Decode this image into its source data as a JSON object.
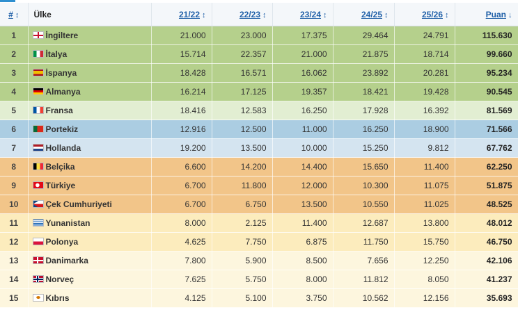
{
  "header": {
    "rank": "#",
    "country": "Ülke",
    "seasons": [
      "21/22",
      "22/23",
      "23/24",
      "24/25",
      "25/26"
    ],
    "points": "Puan",
    "sort_icon": "↕",
    "sorted_icon": "↓"
  },
  "rows": [
    {
      "rank": "1",
      "country": "İngiltere",
      "flag": "england-flag-icon",
      "scores": [
        "21.000",
        "23.000",
        "17.375",
        "29.464",
        "24.791"
      ],
      "points": "115.630"
    },
    {
      "rank": "2",
      "country": "İtalya",
      "flag": "italy-flag-icon",
      "scores": [
        "15.714",
        "22.357",
        "21.000",
        "21.875",
        "18.714"
      ],
      "points": "99.660"
    },
    {
      "rank": "3",
      "country": "İspanya",
      "flag": "spain-flag-icon",
      "scores": [
        "18.428",
        "16.571",
        "16.062",
        "23.892",
        "20.281"
      ],
      "points": "95.234"
    },
    {
      "rank": "4",
      "country": "Almanya",
      "flag": "germany-flag-icon",
      "scores": [
        "16.214",
        "17.125",
        "19.357",
        "18.421",
        "19.428"
      ],
      "points": "90.545"
    },
    {
      "rank": "5",
      "country": "Fransa",
      "flag": "france-flag-icon",
      "scores": [
        "18.416",
        "12.583",
        "16.250",
        "17.928",
        "16.392"
      ],
      "points": "81.569"
    },
    {
      "rank": "6",
      "country": "Portekiz",
      "flag": "portugal-flag-icon",
      "scores": [
        "12.916",
        "12.500",
        "11.000",
        "16.250",
        "18.900"
      ],
      "points": "71.566"
    },
    {
      "rank": "7",
      "country": "Hollanda",
      "flag": "netherlands-flag-icon",
      "scores": [
        "19.200",
        "13.500",
        "10.000",
        "15.250",
        "9.812"
      ],
      "points": "67.762"
    },
    {
      "rank": "8",
      "country": "Belçika",
      "flag": "belgium-flag-icon",
      "scores": [
        "6.600",
        "14.200",
        "14.400",
        "15.650",
        "11.400"
      ],
      "points": "62.250"
    },
    {
      "rank": "9",
      "country": "Türkiye",
      "flag": "turkey-flag-icon",
      "scores": [
        "6.700",
        "11.800",
        "12.000",
        "10.300",
        "11.075"
      ],
      "points": "51.875"
    },
    {
      "rank": "10",
      "country": "Çek Cumhuriyeti",
      "flag": "czech-flag-icon",
      "scores": [
        "6.700",
        "6.750",
        "13.500",
        "10.550",
        "11.025"
      ],
      "points": "48.525"
    },
    {
      "rank": "11",
      "country": "Yunanistan",
      "flag": "greece-flag-icon",
      "scores": [
        "8.000",
        "2.125",
        "11.400",
        "12.687",
        "13.800"
      ],
      "points": "48.012"
    },
    {
      "rank": "12",
      "country": "Polonya",
      "flag": "poland-flag-icon",
      "scores": [
        "4.625",
        "7.750",
        "6.875",
        "11.750",
        "15.750"
      ],
      "points": "46.750"
    },
    {
      "rank": "13",
      "country": "Danimarka",
      "flag": "denmark-flag-icon",
      "scores": [
        "7.800",
        "5.900",
        "8.500",
        "7.656",
        "12.250"
      ],
      "points": "42.106"
    },
    {
      "rank": "14",
      "country": "Norveç",
      "flag": "norway-flag-icon",
      "scores": [
        "7.625",
        "5.750",
        "8.000",
        "11.812",
        "8.050"
      ],
      "points": "41.237"
    },
    {
      "rank": "15",
      "country": "Kıbrıs",
      "flag": "cyprus-flag-icon",
      "scores": [
        "4.125",
        "5.100",
        "3.750",
        "10.562",
        "12.156"
      ],
      "points": "35.693"
    }
  ],
  "colors": {
    "green": "#b5d08c",
    "light_green": "#e2eed2",
    "blue": "#abcde2",
    "light_blue": "#d4e4f0",
    "orange": "#f2c589",
    "yellow": "#fcecbd",
    "cream": "#fdf6de",
    "header_link": "#2060a8"
  }
}
